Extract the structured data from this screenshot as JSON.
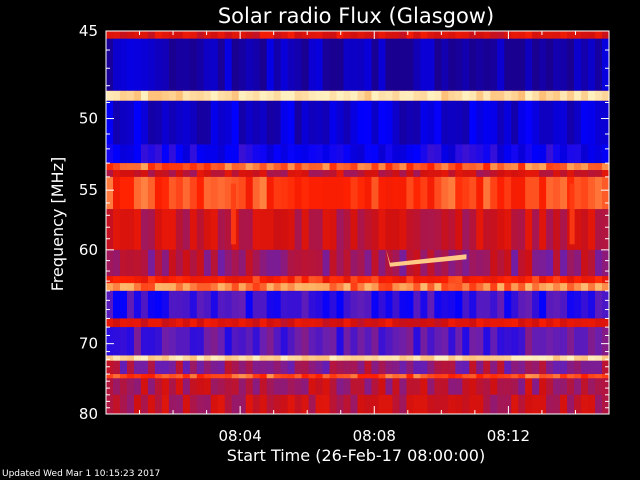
{
  "chart_data": {
    "type": "heatmap",
    "title": "Solar radio Flux (Glasgow)",
    "xlabel": "Start Time (26-Feb-17 08:00:00)",
    "ylabel": "Frequency [MHz]",
    "x_unit": "minutes after 08:00:00",
    "xlim": [
      0,
      15
    ],
    "ylim": [
      45,
      80
    ],
    "y_scale": "reciprocal",
    "xticks": [
      {
        "value": 4,
        "label": "08:04"
      },
      {
        "value": 8,
        "label": "08:08"
      },
      {
        "value": 12,
        "label": "08:12"
      }
    ],
    "yticks": [
      {
        "value": 45,
        "label": "45"
      },
      {
        "value": 50,
        "label": "50"
      },
      {
        "value": 55,
        "label": "55"
      },
      {
        "value": 60,
        "label": "60"
      },
      {
        "value": 70,
        "label": "70"
      },
      {
        "value": 80,
        "label": "80"
      }
    ],
    "colormap": [
      "#1a0090",
      "#0000ff",
      "#6a1fb0",
      "#d01010",
      "#ff2000",
      "#ffb060",
      "#fff0c0"
    ],
    "bands": [
      {
        "from": 45.0,
        "to": 45.4,
        "level": 0.55
      },
      {
        "from": 45.4,
        "to": 48.3,
        "level": 0.05
      },
      {
        "from": 48.3,
        "to": 48.9,
        "level": 0.95
      },
      {
        "from": 48.9,
        "to": 51.7,
        "level": 0.1
      },
      {
        "from": 51.7,
        "to": 53.0,
        "level": 0.18
      },
      {
        "from": 53.0,
        "to": 53.5,
        "level": 0.75
      },
      {
        "from": 53.5,
        "to": 54.0,
        "level": 0.5
      },
      {
        "from": 54.0,
        "to": 56.5,
        "level": 0.7
      },
      {
        "from": 56.5,
        "to": 60.0,
        "level": 0.5
      },
      {
        "from": 60.0,
        "to": 62.5,
        "level": 0.42
      },
      {
        "from": 62.5,
        "to": 63.2,
        "level": 0.65
      },
      {
        "from": 63.2,
        "to": 64.0,
        "level": 0.78
      },
      {
        "from": 64.0,
        "to": 67.0,
        "level": 0.25
      },
      {
        "from": 67.0,
        "to": 68.0,
        "level": 0.55
      },
      {
        "from": 68.0,
        "to": 71.5,
        "level": 0.3
      },
      {
        "from": 71.5,
        "to": 72.2,
        "level": 0.95
      },
      {
        "from": 72.2,
        "to": 74.0,
        "level": 0.4
      },
      {
        "from": 74.0,
        "to": 74.6,
        "level": 0.72
      },
      {
        "from": 74.6,
        "to": 77.0,
        "level": 0.45
      },
      {
        "from": 77.0,
        "to": 80.0,
        "level": 0.48
      }
    ],
    "features": [
      {
        "kind": "burst",
        "x_start": 8.35,
        "x_end": 10.75,
        "f_start": 60.5,
        "f_end": 61.2,
        "level": 0.9
      },
      {
        "kind": "spike",
        "x": 3.8,
        "f_from": 54.5,
        "f_to": 59.5,
        "level": 0.7
      },
      {
        "kind": "spike",
        "x": 13.9,
        "f_from": 54.5,
        "f_to": 59.5,
        "level": 0.7
      }
    ]
  },
  "footer_text": "Updated Wed Mar  1 10:15:23 2017"
}
